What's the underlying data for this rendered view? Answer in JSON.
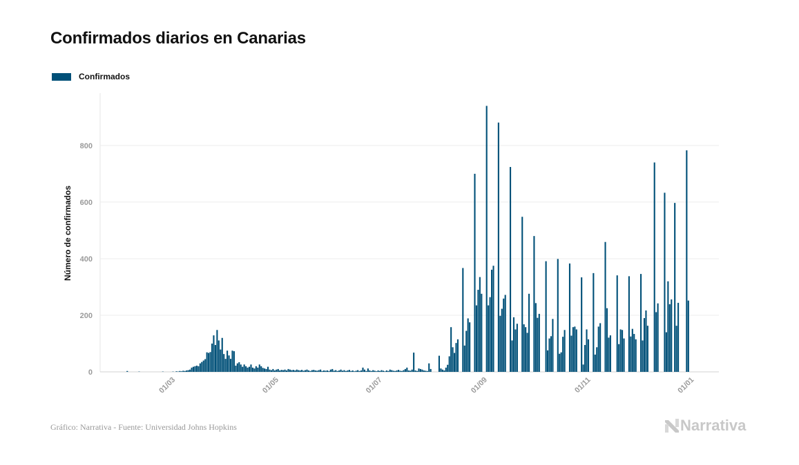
{
  "title": "Confirmados diarios en Canarias",
  "footer": "Gráfico: Narrativa - Fuente: Universidad Johns Hopkins",
  "logo_text": "Narrativa",
  "chart_data": {
    "type": "bar",
    "title": "Confirmados diarios en Canarias",
    "xlabel": "",
    "ylabel": "Número de confirmados",
    "xlim": [
      "2020-01-19",
      "2021-01-18"
    ],
    "ylim": [
      0,
      985
    ],
    "y_ticks": [
      0,
      200,
      400,
      600,
      800
    ],
    "x_ticks": [
      {
        "date": "2020-03-01",
        "label": "01/03"
      },
      {
        "date": "2020-05-01",
        "label": "01/05"
      },
      {
        "date": "2020-07-01",
        "label": "01/07"
      },
      {
        "date": "2020-09-01",
        "label": "01/09"
      },
      {
        "date": "2020-11-01",
        "label": "01/11"
      },
      {
        "date": "2021-01-01",
        "label": "01/01"
      }
    ],
    "grid": "horizontal",
    "legend_position": "top-left",
    "color": "#005078",
    "series": [
      {
        "name": "Confirmados",
        "months": [
          {
            "month": "2020-02",
            "values": [
              0,
              0,
              0,
              3,
              0,
              0,
              0,
              0,
              0,
              0,
              1,
              0,
              0,
              0,
              0,
              0,
              0,
              0,
              0,
              0,
              0,
              0,
              0,
              0,
              1,
              0,
              0,
              0,
              0
            ]
          },
          {
            "month": "2020-03",
            "values": [
              0,
              1,
              0,
              2,
              1,
              3,
              2,
              4,
              3,
              5,
              6,
              8,
              15,
              18,
              20,
              22,
              20,
              30,
              35,
              40,
              45,
              69,
              67,
              70,
              100,
              129,
              95,
              148,
              111,
              79,
              120
            ]
          },
          {
            "month": "2020-04",
            "values": [
              63,
              46,
              75,
              58,
              46,
              75,
              73,
              22,
              30,
              34,
              26,
              18,
              26,
              20,
              15,
              18,
              26,
              15,
              12,
              20,
              15,
              26,
              20,
              14,
              12,
              10,
              18,
              8,
              6,
              10
            ]
          },
          {
            "month": "2020-05",
            "values": [
              5,
              8,
              10,
              5,
              7,
              6,
              8,
              5,
              10,
              8,
              6,
              7,
              5,
              8,
              6,
              5,
              7,
              4,
              6,
              8,
              5,
              3,
              6,
              7,
              5,
              4,
              6,
              8,
              3,
              5,
              4
            ]
          },
          {
            "month": "2020-06",
            "values": [
              5,
              3,
              8,
              10,
              4,
              6,
              3,
              5,
              8,
              4,
              6,
              3,
              5,
              7,
              3,
              5,
              2,
              4,
              6,
              3,
              5,
              15,
              8,
              3,
              12,
              5,
              3,
              6,
              4,
              2
            ]
          },
          {
            "month": "2020-07",
            "values": [
              5,
              3,
              6,
              4,
              2,
              5,
              3,
              8,
              6,
              4,
              3,
              5,
              7,
              4,
              3,
              6,
              10,
              15,
              5,
              4,
              8,
              68,
              5,
              3,
              12,
              10,
              8,
              5,
              4,
              3,
              30
            ]
          },
          {
            "month": "2020-08",
            "values": [
              10,
              0,
              0,
              0,
              0,
              57,
              12,
              8,
              5,
              15,
              25,
              55,
              158,
              87,
              67,
              102,
              115,
              0,
              0,
              367,
              93,
              145,
              189,
              175,
              0,
              0,
              700,
              235,
              290,
              335,
              276
            ]
          },
          {
            "month": "2020-09",
            "values": [
              0,
              0,
              940,
              235,
              264,
              361,
              375,
              0,
              0,
              881,
              198,
              223,
              259,
              272,
              0,
              0,
              724,
              111,
              193,
              150,
              170,
              0,
              0,
              548,
              168,
              158,
              138,
              276,
              0,
              0
            ]
          },
          {
            "month": "2020-10",
            "values": [
              480,
              243,
              191,
              205,
              0,
              0,
              0,
              391,
              76,
              118,
              126,
              187,
              0,
              0,
              399,
              64,
              69,
              124,
              148,
              0,
              0,
              383,
              128,
              158,
              160,
              150,
              0,
              0,
              334,
              26,
              95
            ]
          },
          {
            "month": "2020-11",
            "values": [
              150,
              115,
              0,
              0,
              349,
              61,
              87,
              160,
              172,
              0,
              0,
              459,
              225,
              121,
              129,
              0,
              0,
              0,
              341,
              98,
              150,
              148,
              118,
              0,
              0,
              338,
              125,
              152,
              134,
              115
            ]
          },
          {
            "month": "2020-12",
            "values": [
              0,
              0,
              346,
              111,
              190,
              217,
              163,
              0,
              0,
              0,
              740,
              211,
              242,
              0,
              0,
              0,
              633,
              140,
              320,
              239,
              256,
              0,
              597,
              163,
              244,
              0,
              0,
              0,
              0,
              783,
              252
            ]
          }
        ]
      }
    ]
  }
}
